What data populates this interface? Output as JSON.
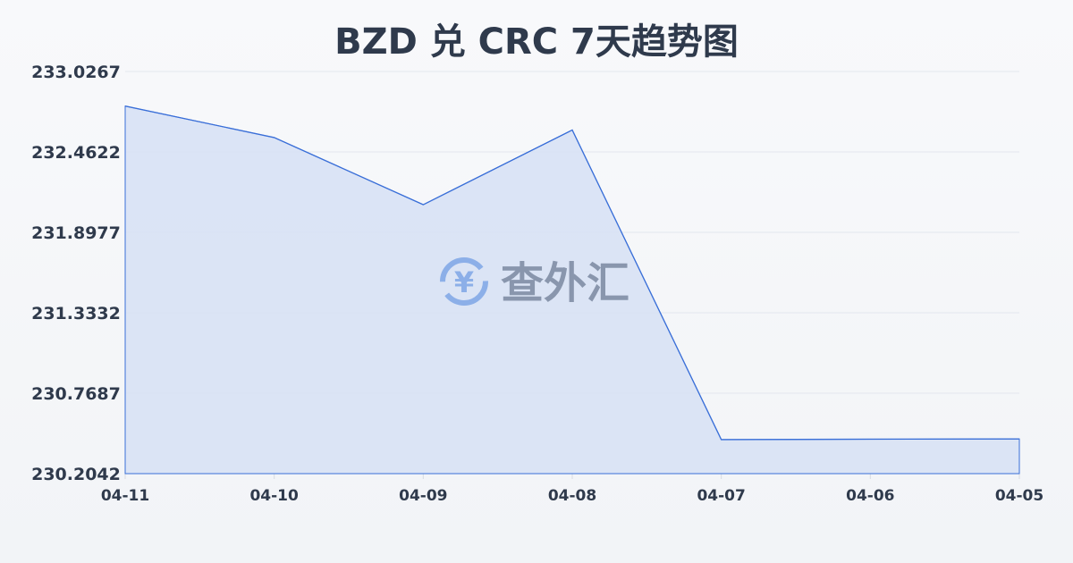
{
  "chart_data": {
    "type": "area",
    "title": "BZD 兑 CRC 7天趋势图",
    "categories": [
      "04-11",
      "04-10",
      "04-09",
      "04-08",
      "04-07",
      "04-06",
      "04-05"
    ],
    "values": [
      232.784,
      232.563,
      232.092,
      232.616,
      230.443,
      230.446,
      230.448
    ],
    "yticks": [
      "233.0267",
      "232.4622",
      "231.8977",
      "231.3332",
      "230.7687",
      "230.2042"
    ],
    "ylim": [
      230.2042,
      233.0267
    ],
    "grid": true,
    "colors": {
      "line": "#3a6fd8",
      "fill": "#d6e1f5"
    }
  },
  "watermark": {
    "text": "查外汇",
    "icon": "yen-exchange-icon"
  }
}
